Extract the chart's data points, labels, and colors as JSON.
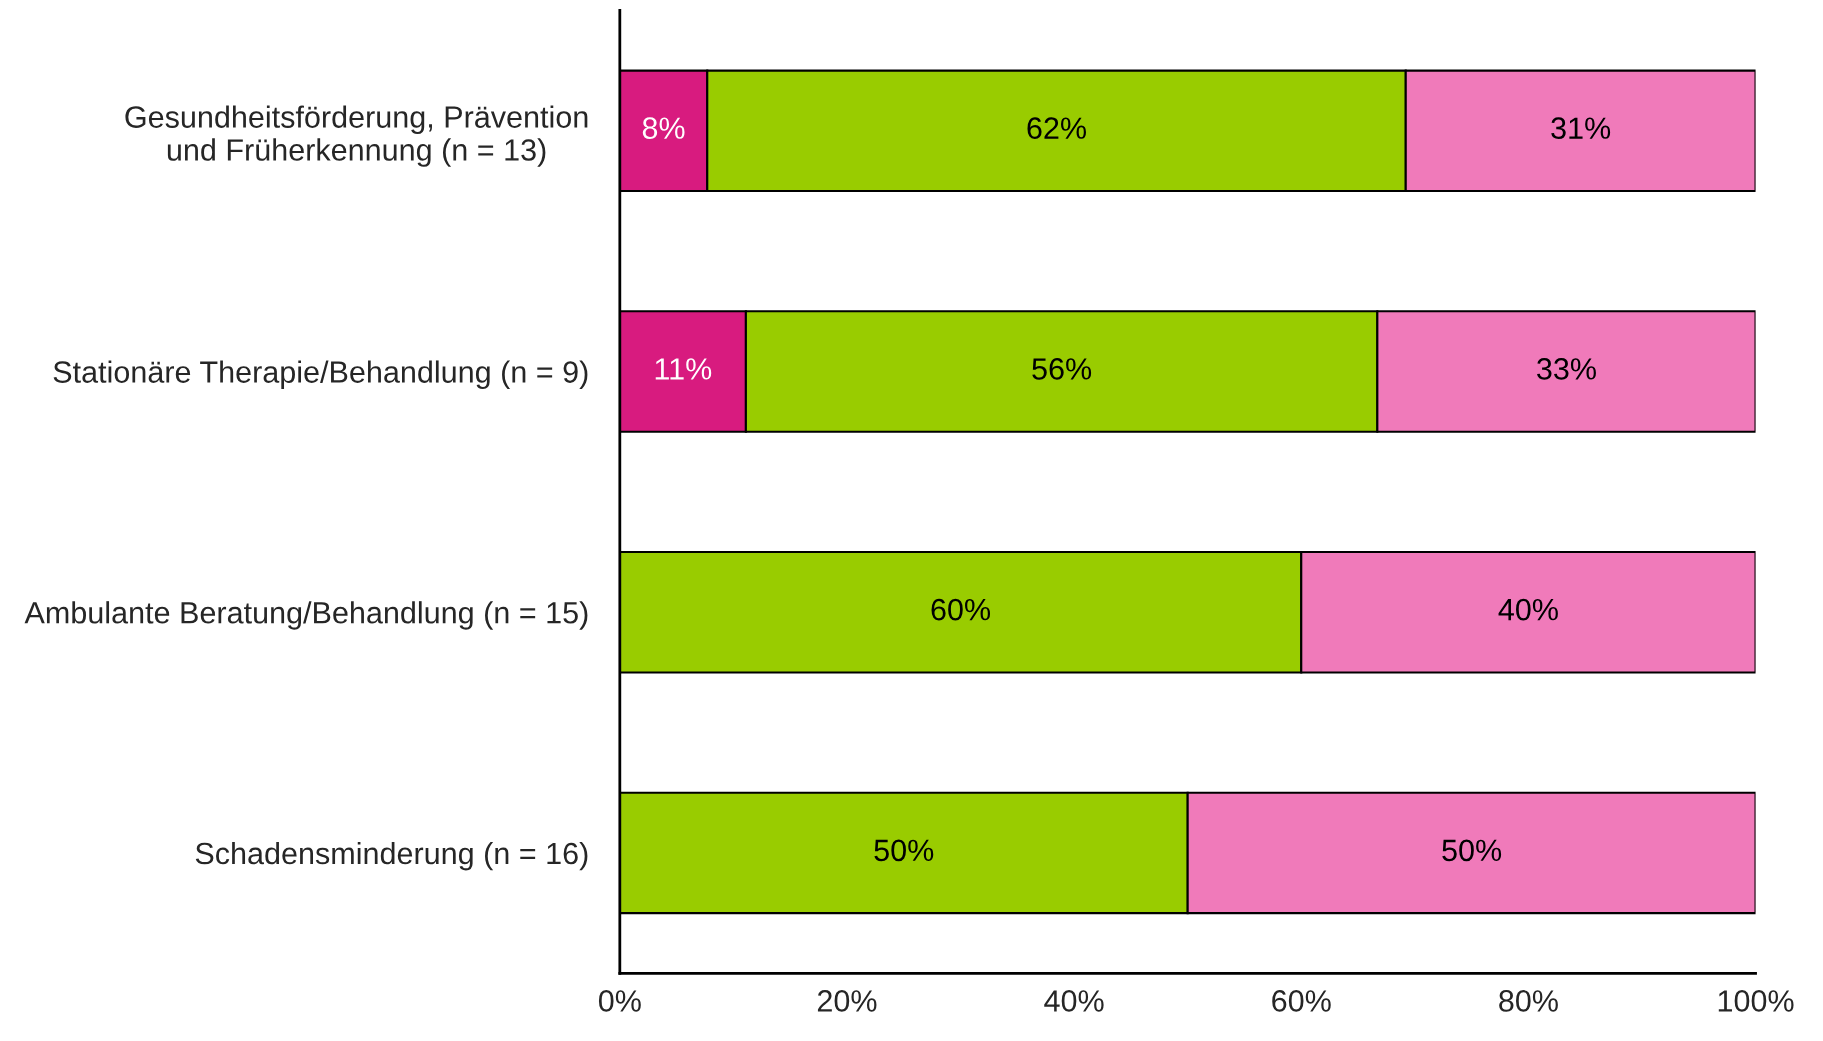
{
  "chart_data": {
    "type": "bar",
    "orientation": "horizontal",
    "stacked": true,
    "categories": [
      "Gesundheitsförderung, Prävention\nund Früherkennung (n = 13)",
      "Stationäre Therapie/Behandlung (n = 9)",
      "Ambulante Beratung/Behandlung (n = 15)",
      "Schadensminderung (n = 16)"
    ],
    "series": [
      {
        "color": "#d81b7f",
        "values": [
          7.7,
          11.1,
          null,
          null
        ],
        "value_labels": [
          "8%",
          "11%",
          null,
          null
        ]
      },
      {
        "color": "#99cc00",
        "values": [
          61.5,
          55.6,
          60,
          50
        ],
        "value_labels": [
          "62%",
          "56%",
          "60%",
          "50%"
        ]
      },
      {
        "color": "#f07aba",
        "values": [
          30.8,
          33.3,
          40,
          50
        ],
        "value_labels": [
          "31%",
          "33%",
          "40%",
          "50%"
        ]
      }
    ],
    "xlim": [
      0,
      100
    ],
    "xticks": [
      {
        "value": 0,
        "label": "0%"
      },
      {
        "value": 20,
        "label": "20%"
      },
      {
        "value": 40,
        "label": "40%"
      },
      {
        "value": 60,
        "label": "60%"
      },
      {
        "value": 80,
        "label": "80%"
      },
      {
        "value": 100,
        "label": "100%"
      }
    ],
    "grid": false,
    "legend": false
  }
}
